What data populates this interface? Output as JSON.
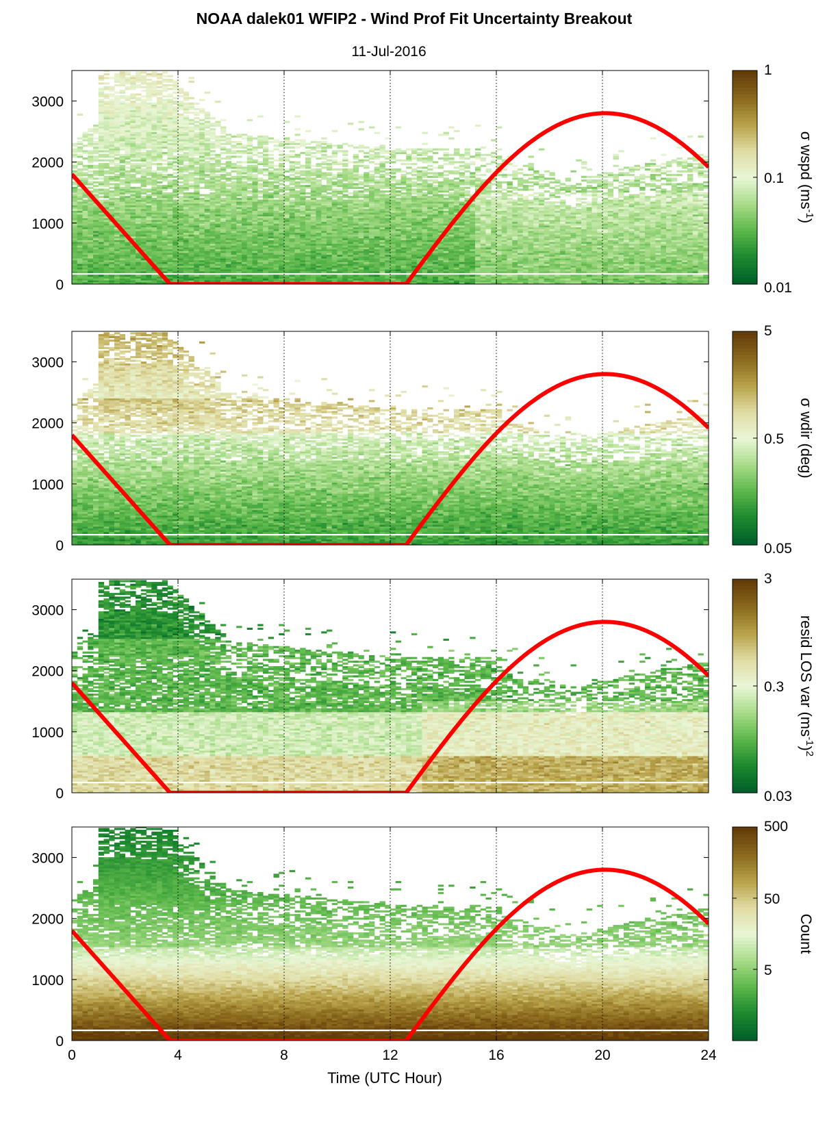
{
  "title": "NOAA dalek01 WFIP2 - Wind Prof Fit Uncertainty Breakout",
  "subtitle": "11-Jul-2016",
  "colors": {
    "curve": "#ff0000",
    "colormap": [
      "#00602a",
      "#1e8a2f",
      "#5db84b",
      "#a9dc8a",
      "#e9f6d6",
      "#e0dca4",
      "#b8a24a",
      "#8a6a1e",
      "#643c08"
    ],
    "grid": "#000000",
    "gap": "#ffffff"
  },
  "chart_data": [
    {
      "type": "heatmap",
      "x_range": [
        0,
        24
      ],
      "y_range": [
        0,
        3500
      ],
      "x_ticks": [
        "0",
        "4",
        "8",
        "12",
        "16",
        "20",
        "24"
      ],
      "y_ticks": [
        "0",
        "1000",
        "2000",
        "3000"
      ],
      "x_tick_values": [
        0,
        4,
        8,
        12,
        16,
        20,
        24
      ],
      "y_tick_values": [
        0,
        1000,
        2000,
        3000
      ],
      "grid": "dotted vertical",
      "colorbar": {
        "label": "σ wspd (ms",
        "label_sup": "-1",
        "label_tail": ")",
        "scale": "log",
        "min": 0.01,
        "max": 1,
        "ticks": [
          "1",
          "0.1",
          "0.01"
        ],
        "tick_fracs": [
          1,
          0.5,
          0
        ]
      },
      "curve": {
        "x": [
          0,
          3.7,
          12.6,
          16,
          20.1,
          24
        ],
        "y": [
          1800,
          0,
          0,
          1800,
          2800,
          1900
        ]
      }
    },
    {
      "type": "heatmap",
      "x_range": [
        0,
        24
      ],
      "y_range": [
        0,
        3500
      ],
      "x_ticks": [
        "0",
        "4",
        "8",
        "12",
        "16",
        "20",
        "24"
      ],
      "y_ticks": [
        "0",
        "1000",
        "2000",
        "3000"
      ],
      "x_tick_values": [
        0,
        4,
        8,
        12,
        16,
        20,
        24
      ],
      "y_tick_values": [
        0,
        1000,
        2000,
        3000
      ],
      "grid": "dotted vertical",
      "colorbar": {
        "label": "σ wdir (deg)",
        "label_sup": "",
        "label_tail": "",
        "scale": "log",
        "min": 0.05,
        "max": 5,
        "ticks": [
          "5",
          "0.5",
          "0.05"
        ],
        "tick_fracs": [
          1,
          0.5,
          0
        ]
      },
      "curve": {
        "x": [
          0,
          3.7,
          12.6,
          16,
          20.1,
          24
        ],
        "y": [
          1800,
          0,
          0,
          1800,
          2800,
          1900
        ]
      }
    },
    {
      "type": "heatmap",
      "x_range": [
        0,
        24
      ],
      "y_range": [
        0,
        3500
      ],
      "x_ticks": [
        "0",
        "4",
        "8",
        "12",
        "16",
        "20",
        "24"
      ],
      "y_ticks": [
        "0",
        "1000",
        "2000",
        "3000"
      ],
      "x_tick_values": [
        0,
        4,
        8,
        12,
        16,
        20,
        24
      ],
      "y_tick_values": [
        0,
        1000,
        2000,
        3000
      ],
      "grid": "dotted vertical",
      "colorbar": {
        "label": "resid LOS var (ms",
        "label_sup": "-1",
        "label_tail": ")",
        "label_sup2": "2",
        "scale": "log",
        "min": 0.03,
        "max": 3,
        "ticks": [
          "3",
          "0.3",
          "0.03"
        ],
        "tick_fracs": [
          1,
          0.5,
          0
        ]
      },
      "curve": {
        "x": [
          0,
          3.7,
          12.6,
          16,
          20.1,
          24
        ],
        "y": [
          1800,
          0,
          0,
          1800,
          2800,
          1900
        ]
      }
    },
    {
      "type": "heatmap",
      "x_range": [
        0,
        24
      ],
      "y_range": [
        0,
        3500
      ],
      "x_ticks": [
        "0",
        "4",
        "8",
        "12",
        "16",
        "20",
        "24"
      ],
      "y_ticks": [
        "0",
        "1000",
        "2000",
        "3000"
      ],
      "x_tick_values": [
        0,
        4,
        8,
        12,
        16,
        20,
        24
      ],
      "y_tick_values": [
        0,
        1000,
        2000,
        3000
      ],
      "grid": "dotted vertical",
      "xlabel": "Time (UTC Hour)",
      "colorbar": {
        "label": "Count",
        "label_sup": "",
        "label_tail": "",
        "scale": "log",
        "min": 0.5,
        "max": 500,
        "ticks": [
          "500",
          "50",
          "5"
        ],
        "tick_fracs": [
          1,
          0.6667,
          0.3333
        ]
      },
      "curve": {
        "x": [
          0,
          3.7,
          12.6,
          16,
          20.1,
          24
        ],
        "y": [
          1800,
          0,
          0,
          1800,
          2800,
          1900
        ]
      }
    }
  ]
}
